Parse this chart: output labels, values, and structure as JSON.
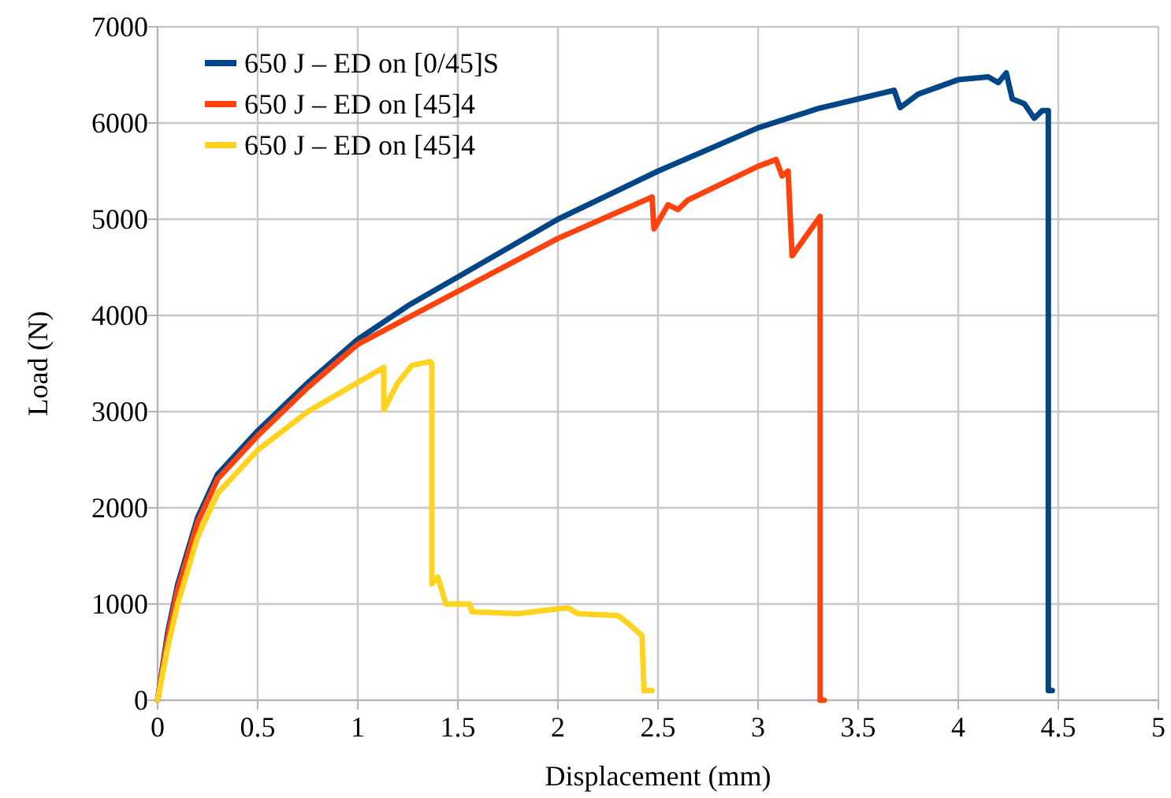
{
  "chart_data": {
    "type": "line",
    "xlabel": "Displacement (mm)",
    "ylabel": "Load (N)",
    "xlim": [
      0,
      5
    ],
    "xticks": [
      0,
      0.5,
      1,
      1.5,
      2,
      2.5,
      3,
      3.5,
      4,
      4.5,
      5
    ],
    "ylim": [
      0,
      7000
    ],
    "yticks": [
      0,
      1000,
      2000,
      3000,
      4000,
      5000,
      6000,
      7000
    ],
    "grid": true,
    "legend": "top left",
    "marker": "none",
    "line_style": "solid",
    "series": [
      {
        "name": "650 J – ED on [0/45]S",
        "color": "#004586",
        "x": [
          0,
          0.05,
          0.1,
          0.2,
          0.3,
          0.5,
          0.75,
          1,
          1.25,
          1.5,
          2,
          2.5,
          3,
          3.3,
          3.4,
          3.5,
          3.6,
          3.68,
          3.71,
          3.8,
          4,
          4.15,
          4.2,
          4.24,
          4.27,
          4.33,
          4.38,
          4.42,
          4.45,
          4.45,
          4.47
        ],
        "values": [
          0,
          700,
          1200,
          1900,
          2350,
          2800,
          3300,
          3750,
          4100,
          4400,
          5000,
          5500,
          5950,
          6150,
          6200,
          6250,
          6300,
          6340,
          6160,
          6300,
          6450,
          6480,
          6420,
          6520,
          6250,
          6200,
          6050,
          6130,
          6130,
          100,
          100
        ]
      },
      {
        "name": "650 J – ED on [45]4",
        "color": "#ff420e",
        "x": [
          0,
          0.05,
          0.1,
          0.2,
          0.3,
          0.5,
          0.75,
          1,
          1.5,
          2,
          2.47,
          2.48,
          2.55,
          2.6,
          2.65,
          3,
          3.09,
          3.12,
          3.15,
          3.17,
          3.31,
          3.31,
          3.33
        ],
        "values": [
          0,
          650,
          1150,
          1850,
          2300,
          2750,
          3250,
          3700,
          4250,
          4800,
          5230,
          4900,
          5150,
          5100,
          5200,
          5550,
          5620,
          5450,
          5500,
          4620,
          5030,
          0,
          0
        ]
      },
      {
        "name": "650 J – ED on [45]4",
        "color": "#ffd320",
        "x": [
          0,
          0.05,
          0.1,
          0.2,
          0.3,
          0.5,
          0.75,
          1.13,
          1.13,
          1.2,
          1.27,
          1.36,
          1.37,
          1.37,
          1.4,
          1.44,
          1.5,
          1.56,
          1.57,
          1.8,
          2,
          2.05,
          2.1,
          2.3,
          2.35,
          2.42,
          2.43,
          2.47
        ],
        "values": [
          0,
          550,
          1000,
          1700,
          2150,
          2600,
          3000,
          3460,
          3020,
          3300,
          3480,
          3520,
          3500,
          1210,
          1280,
          1000,
          1000,
          1000,
          920,
          900,
          950,
          960,
          900,
          880,
          800,
          670,
          100,
          100
        ]
      }
    ]
  }
}
